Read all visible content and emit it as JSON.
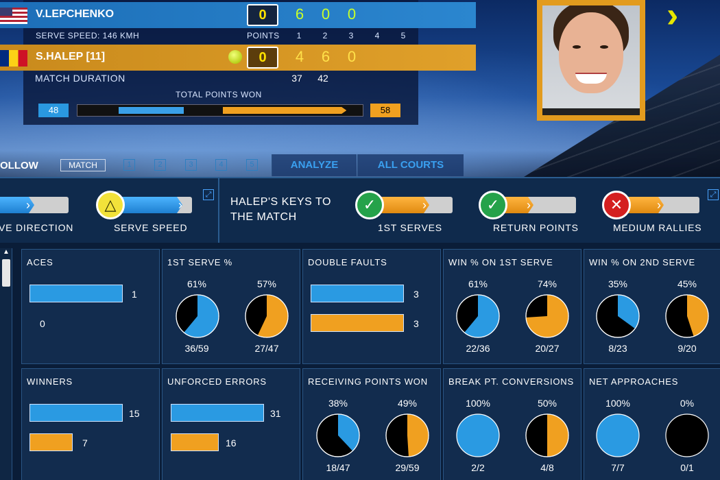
{
  "scoreboard": {
    "player1": {
      "name": "V.LEPCHENKO",
      "point": "0",
      "sets": [
        "6",
        "0",
        "0"
      ]
    },
    "player2": {
      "name": "S.HALEP [11]",
      "point": "0",
      "sets": [
        "4",
        "6",
        "0"
      ]
    },
    "serve_speed": "SERVE SPEED: 146 KMH",
    "points_label": "POINTS",
    "set_numbers": [
      "1",
      "2",
      "3",
      "4",
      "5"
    ],
    "match_duration_label": "MATCH DURATION",
    "durations": [
      "37",
      "42"
    ],
    "total_points_label": "TOTAL POINTS WON",
    "total_points": {
      "left": "48",
      "right": "58"
    }
  },
  "tabbar": {
    "follow": "OLLOW",
    "match": "MATCH",
    "numbers": [
      "1",
      "2",
      "3",
      "4",
      "5"
    ],
    "analyze": "ANALYZE",
    "all_courts": "ALL COURTS"
  },
  "keys": {
    "left_labels": [
      "VE DIRECTION",
      "SERVE SPEED"
    ],
    "title": "HALEP'S KEYS TO THE MATCH",
    "items": [
      {
        "label": "1ST SERVES",
        "status": "check"
      },
      {
        "label": "RETURN POINTS",
        "status": "check"
      },
      {
        "label": "MEDIUM RALLIES",
        "status": "cross"
      }
    ]
  },
  "colors": {
    "blue": "#2a9ae2",
    "orange": "#f0a020",
    "black": "#000000"
  },
  "icons": {
    "check": "✓",
    "cross": "✕",
    "triangle": "△",
    "expand": "⤢",
    "chevron": "›",
    "scroll_up": "▲"
  },
  "stats": {
    "aces": {
      "title": "ACES",
      "blue": 1,
      "orange": 0,
      "blue_label": "1",
      "orange_label": "0"
    },
    "first_serve": {
      "title": "1ST SERVE %",
      "left": {
        "pct": "61%",
        "frac": "36/59",
        "value": 0.61
      },
      "right": {
        "pct": "57%",
        "frac": "27/47",
        "value": 0.57
      }
    },
    "double_faults": {
      "title": "DOUBLE FAULTS",
      "blue": 3,
      "orange": 3,
      "blue_label": "3",
      "orange_label": "3"
    },
    "win_first": {
      "title": "WIN % ON 1ST SERVE",
      "left": {
        "pct": "61%",
        "frac": "22/36",
        "value": 0.61
      },
      "right": {
        "pct": "74%",
        "frac": "20/27",
        "value": 0.74
      }
    },
    "win_second": {
      "title": "WIN % ON 2ND SERVE",
      "left": {
        "pct": "35%",
        "frac": "8/23",
        "value": 0.35
      },
      "right": {
        "pct": "45%",
        "frac": "9/20",
        "value": 0.45
      }
    },
    "winners": {
      "title": "WINNERS",
      "blue": 15,
      "orange": 7,
      "blue_label": "15",
      "orange_label": "7"
    },
    "unforced": {
      "title": "UNFORCED ERRORS",
      "blue": 31,
      "orange": 16,
      "blue_label": "31",
      "orange_label": "16"
    },
    "receiving": {
      "title": "RECEIVING POINTS WON",
      "left": {
        "pct": "38%",
        "frac": "18/47",
        "value": 0.38
      },
      "right": {
        "pct": "49%",
        "frac": "29/59",
        "value": 0.49
      }
    },
    "break_pts": {
      "title": "BREAK PT. CONVERSIONS",
      "left": {
        "pct": "100%",
        "frac": "2/2",
        "value": 1.0
      },
      "right": {
        "pct": "50%",
        "frac": "4/8",
        "value": 0.5
      }
    },
    "net": {
      "title": "NET APPROACHES",
      "left": {
        "pct": "100%",
        "frac": "7/7",
        "value": 1.0
      },
      "right": {
        "pct": "0%",
        "frac": "0/1",
        "value": 0.0
      }
    }
  }
}
